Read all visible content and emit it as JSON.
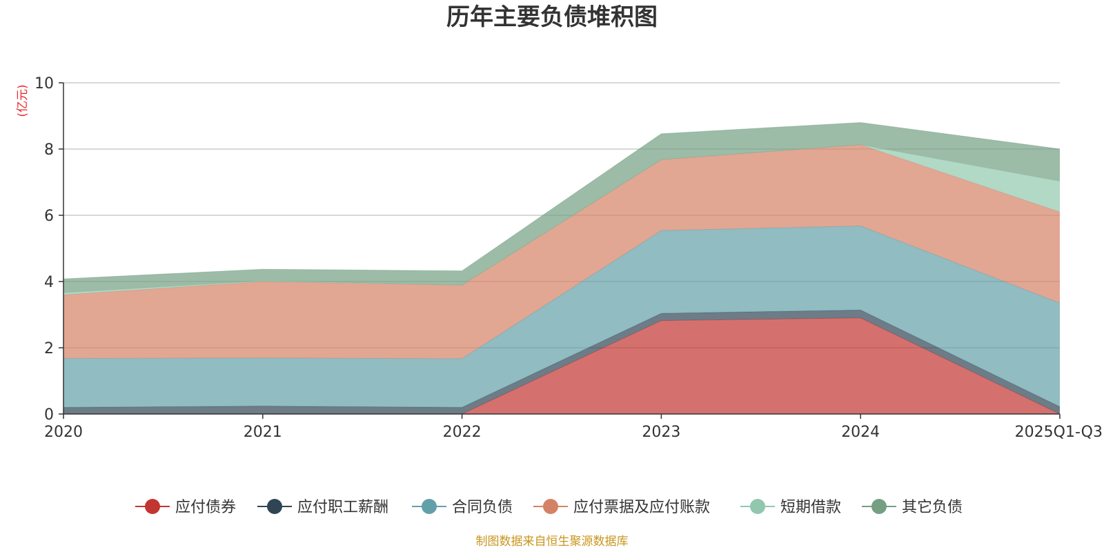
{
  "chart_data": {
    "type": "area",
    "stacked": true,
    "title": "历年主要负债堆积图",
    "unit_label": "(亿元)",
    "categories": [
      "2020",
      "2021",
      "2022",
      "2023",
      "2024",
      "2025Q1-Q3"
    ],
    "ylim": [
      0,
      10
    ],
    "yticks": [
      0,
      2,
      4,
      6,
      8,
      10
    ],
    "grid": true,
    "legend_position": "bottom",
    "series": [
      {
        "name": "应付债券",
        "color": "#c23531",
        "values": [
          0,
          0,
          0,
          2.82,
          2.9,
          0
        ]
      },
      {
        "name": "应付职工薪酬",
        "color": "#2f4554",
        "values": [
          0.2,
          0.24,
          0.2,
          0.22,
          0.24,
          0.22
        ]
      },
      {
        "name": "合同负债",
        "color": "#61a0a8",
        "values": [
          1.48,
          1.45,
          1.47,
          2.5,
          2.54,
          3.13
        ]
      },
      {
        "name": "应付票据及应付账款",
        "color": "#d48265",
        "values": [
          1.92,
          2.31,
          2.22,
          2.14,
          2.45,
          2.75
        ]
      },
      {
        "name": "短期借款",
        "color": "#91c7ae",
        "values": [
          0.06,
          0.02,
          0.0,
          0.0,
          0.0,
          0.93
        ]
      },
      {
        "name": "其它负债",
        "color": "#749f83",
        "values": [
          0.42,
          0.35,
          0.43,
          0.78,
          0.67,
          0.97
        ]
      }
    ]
  },
  "footer": "制图数据来自恒生聚源数据库"
}
